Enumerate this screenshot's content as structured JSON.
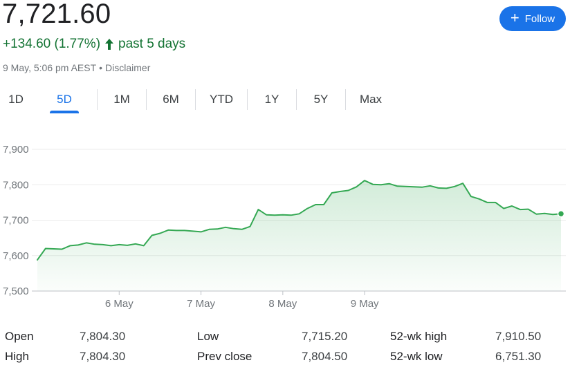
{
  "header": {
    "price": "7,721.60",
    "change": "+134.60 (1.77%)",
    "period": "past 5 days",
    "timestamp": "9 May, 5:06 pm AEST",
    "separator": "•",
    "disclaimer": "Disclaimer",
    "follow_label": "Follow",
    "up_color": "#137333",
    "accent_color": "#1a73e8"
  },
  "tabs": [
    {
      "label": "1D",
      "active": false
    },
    {
      "label": "5D",
      "active": true
    },
    {
      "label": "1M",
      "active": false
    },
    {
      "label": "6M",
      "active": false
    },
    {
      "label": "YTD",
      "active": false
    },
    {
      "label": "1Y",
      "active": false
    },
    {
      "label": "5Y",
      "active": false
    },
    {
      "label": "Max",
      "active": false
    }
  ],
  "chart_data": {
    "type": "area",
    "ylim": [
      7500,
      7900
    ],
    "yticks": [
      "7,900",
      "7,800",
      "7,700",
      "7,600",
      "7,500"
    ],
    "ytick_values": [
      7900,
      7800,
      7700,
      7600,
      7500
    ],
    "xticks": [
      "6 May",
      "7 May",
      "8 May",
      "9 May"
    ],
    "xtick_positions": [
      10,
      20,
      30,
      40
    ],
    "line_color": "#34a853",
    "grid": true,
    "values": [
      7588,
      7620,
      7619,
      7618,
      7628,
      7630,
      7636,
      7632,
      7631,
      7628,
      7631,
      7629,
      7633,
      7628,
      7657,
      7663,
      7672,
      7671,
      7671,
      7669,
      7667,
      7674,
      7675,
      7680,
      7676,
      7674,
      7682,
      7730,
      7715,
      7714,
      7715,
      7714,
      7718,
      7733,
      7744,
      7744,
      7777,
      7781,
      7784,
      7794,
      7812,
      7801,
      7800,
      7803,
      7796,
      7795,
      7794,
      7793,
      7797,
      7791,
      7790,
      7795,
      7804,
      7767,
      7760,
      7750,
      7750,
      7733,
      7740,
      7730,
      7731,
      7717,
      7719,
      7716,
      7718
    ]
  },
  "stats": {
    "col1": [
      {
        "label": "Open",
        "value": "7,804.30"
      },
      {
        "label": "High",
        "value": "7,804.30"
      }
    ],
    "col2": [
      {
        "label": "Low",
        "value": "7,715.20"
      },
      {
        "label": "Prev close",
        "value": "7,804.50"
      }
    ],
    "col3": [
      {
        "label": "52-wk high",
        "value": "7,910.50"
      },
      {
        "label": "52-wk low",
        "value": "6,751.30"
      }
    ]
  }
}
